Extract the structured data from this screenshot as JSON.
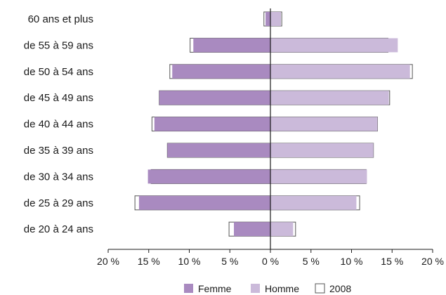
{
  "chart_data": {
    "type": "bar",
    "orientation": "horizontal",
    "categories": [
      "60 ans et plus",
      "de 55 à 59 ans",
      "de 50 à 54 ans",
      "de 45 à 49 ans",
      "de 40 à 44 ans",
      "de 35 à 39 ans",
      "de 30 à 34 ans",
      "de 25 à 29 ans",
      "de 20 à 24 ans"
    ],
    "series": [
      {
        "name": "Femme",
        "color": "#a98ac0",
        "values": [
          0.6,
          9.5,
          12.1,
          13.7,
          14.3,
          12.7,
          15.1,
          16.2,
          4.5
        ]
      },
      {
        "name": "Homme",
        "color": "#cbbada",
        "values": [
          1.3,
          15.7,
          17.2,
          14.6,
          13.2,
          12.7,
          11.9,
          10.6,
          2.8
        ]
      },
      {
        "name": "2008",
        "color": "#ffffff",
        "outline": "#555555",
        "values_femme": [
          0.8,
          9.9,
          12.4,
          13.7,
          14.6,
          12.7,
          14.7,
          16.7,
          5.1
        ],
        "values_homme": [
          1.4,
          14.5,
          17.5,
          14.7,
          13.2,
          12.7,
          11.8,
          11.0,
          3.1
        ]
      }
    ],
    "xlim": [
      -20,
      20
    ],
    "xticks": [
      -20,
      -15,
      -10,
      -5,
      0,
      5,
      10,
      15,
      20
    ],
    "xtick_labels": [
      "20 %",
      "15 %",
      "10 %",
      "5 %",
      "0 %",
      "5 %",
      "10 %",
      "15 %",
      "20 %"
    ],
    "legend": [
      "Femme",
      "Homme",
      "2008"
    ],
    "legend_position": "bottom",
    "grid": false,
    "title": "",
    "xlabel": "",
    "ylabel": ""
  }
}
